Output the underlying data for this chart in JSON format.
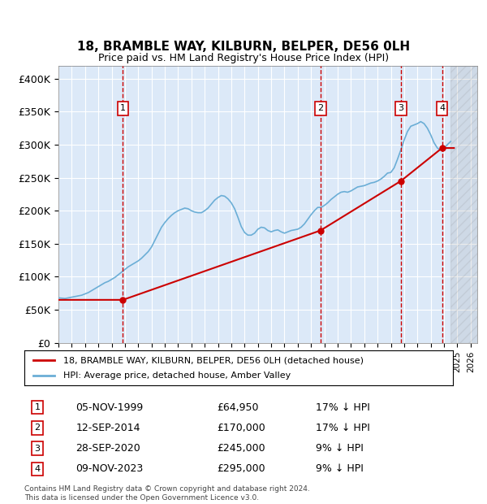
{
  "title": "18, BRAMBLE WAY, KILBURN, BELPER, DE56 0LH",
  "subtitle": "Price paid vs. HM Land Registry's House Price Index (HPI)",
  "ylim": [
    0,
    420000
  ],
  "yticks": [
    0,
    50000,
    100000,
    150000,
    200000,
    250000,
    300000,
    350000,
    400000
  ],
  "ytick_labels": [
    "£0",
    "£50K",
    "£100K",
    "£150K",
    "£200K",
    "£250K",
    "£300K",
    "£350K",
    "£400K"
  ],
  "xlim_start": 1995.0,
  "xlim_end": 2026.5,
  "background_color": "#dce9f8",
  "plot_bg_color": "#dce9f8",
  "hpi_color": "#6baed6",
  "price_color": "#cc0000",
  "sale_marker_color": "#cc0000",
  "vline_color": "#cc0000",
  "grid_color": "#ffffff",
  "legend_label_price": "18, BRAMBLE WAY, KILBURN, BELPER, DE56 0LH (detached house)",
  "legend_label_hpi": "HPI: Average price, detached house, Amber Valley",
  "sales": [
    {
      "num": 1,
      "date": "05-NOV-1999",
      "price": 64950,
      "pct": "17%",
      "x": 1999.85
    },
    {
      "num": 2,
      "date": "12-SEP-2014",
      "price": 170000,
      "pct": "17%",
      "x": 2014.7
    },
    {
      "num": 3,
      "date": "28-SEP-2020",
      "price": 245000,
      "pct": "9%",
      "x": 2020.75
    },
    {
      "num": 4,
      "date": "09-NOV-2023",
      "price": 295000,
      "pct": "9%",
      "x": 2023.85
    }
  ],
  "footer": "Contains HM Land Registry data © Crown copyright and database right 2024.\nThis data is licensed under the Open Government Licence v3.0.",
  "hpi_data_x": [
    1995.0,
    1995.25,
    1995.5,
    1995.75,
    1996.0,
    1996.25,
    1996.5,
    1996.75,
    1997.0,
    1997.25,
    1997.5,
    1997.75,
    1998.0,
    1998.25,
    1998.5,
    1998.75,
    1999.0,
    1999.25,
    1999.5,
    1999.75,
    2000.0,
    2000.25,
    2000.5,
    2000.75,
    2001.0,
    2001.25,
    2001.5,
    2001.75,
    2002.0,
    2002.25,
    2002.5,
    2002.75,
    2003.0,
    2003.25,
    2003.5,
    2003.75,
    2004.0,
    2004.25,
    2004.5,
    2004.75,
    2005.0,
    2005.25,
    2005.5,
    2005.75,
    2006.0,
    2006.25,
    2006.5,
    2006.75,
    2007.0,
    2007.25,
    2007.5,
    2007.75,
    2008.0,
    2008.25,
    2008.5,
    2008.75,
    2009.0,
    2009.25,
    2009.5,
    2009.75,
    2010.0,
    2010.25,
    2010.5,
    2010.75,
    2011.0,
    2011.25,
    2011.5,
    2011.75,
    2012.0,
    2012.25,
    2012.5,
    2012.75,
    2013.0,
    2013.25,
    2013.5,
    2013.75,
    2014.0,
    2014.25,
    2014.5,
    2014.75,
    2015.0,
    2015.25,
    2015.5,
    2015.75,
    2016.0,
    2016.25,
    2016.5,
    2016.75,
    2017.0,
    2017.25,
    2017.5,
    2017.75,
    2018.0,
    2018.25,
    2018.5,
    2018.75,
    2019.0,
    2019.25,
    2019.5,
    2019.75,
    2020.0,
    2020.25,
    2020.5,
    2020.75,
    2021.0,
    2021.25,
    2021.5,
    2021.75,
    2022.0,
    2022.25,
    2022.5,
    2022.75,
    2023.0,
    2023.25,
    2023.5,
    2023.75,
    2024.0,
    2024.25,
    2024.5
  ],
  "hpi_data_y": [
    68000,
    67500,
    67000,
    68000,
    69000,
    70000,
    71000,
    72000,
    74000,
    76000,
    79000,
    82000,
    85000,
    88000,
    91000,
    93000,
    96000,
    99000,
    103000,
    107000,
    111000,
    115000,
    118000,
    121000,
    124000,
    128000,
    133000,
    138000,
    145000,
    155000,
    165000,
    175000,
    182000,
    188000,
    193000,
    197000,
    200000,
    202000,
    204000,
    203000,
    200000,
    198000,
    197000,
    197000,
    200000,
    204000,
    210000,
    216000,
    220000,
    223000,
    222000,
    218000,
    212000,
    203000,
    190000,
    176000,
    167000,
    163000,
    163000,
    166000,
    172000,
    175000,
    174000,
    170000,
    168000,
    170000,
    171000,
    168000,
    166000,
    168000,
    170000,
    171000,
    172000,
    175000,
    180000,
    187000,
    194000,
    200000,
    205000,
    205000,
    208000,
    212000,
    217000,
    221000,
    225000,
    228000,
    229000,
    228000,
    230000,
    233000,
    236000,
    237000,
    238000,
    240000,
    242000,
    243000,
    245000,
    248000,
    252000,
    257000,
    258000,
    265000,
    278000,
    292000,
    307000,
    320000,
    328000,
    330000,
    332000,
    335000,
    332000,
    325000,
    315000,
    303000,
    295000,
    292000,
    295000,
    300000,
    305000
  ],
  "price_data_x": [
    1995.0,
    1999.85,
    2014.7,
    2020.75,
    2023.85,
    2024.75
  ],
  "price_data_y": [
    64950,
    64950,
    170000,
    245000,
    295000,
    295000
  ],
  "hatched_region_start": 2024.5,
  "hatched_region_end": 2026.5
}
